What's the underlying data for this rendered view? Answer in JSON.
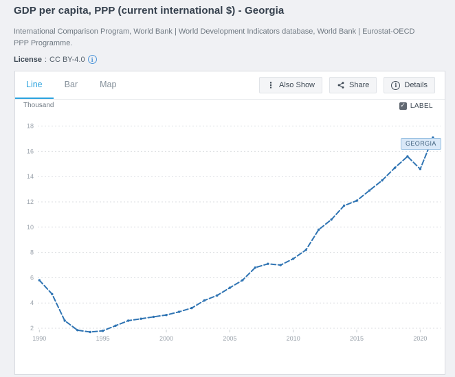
{
  "header": {
    "title": "GDP per capita, PPP (current international $) - Georgia",
    "source": "International Comparison Program, World Bank | World Development Indicators database, World Bank | Eurostat-OECD PPP Programme.",
    "license_label": "License",
    "license_separator": ": ",
    "license_value": "CC BY-4.0"
  },
  "tabs": [
    {
      "label": "Line",
      "active": true
    },
    {
      "label": "Bar",
      "active": false
    },
    {
      "label": "Map",
      "active": false
    }
  ],
  "toolbar": {
    "also_show_label": "Also Show",
    "share_label": "Share",
    "details_label": "Details"
  },
  "chart_controls": {
    "unit_label": "Thousand",
    "label_checkbox_text": "LABEL",
    "label_checked": true
  },
  "series_tag": "GEORGIA",
  "colors": {
    "accent_tab": "#2aa2de",
    "line": "#2f74b3",
    "tag_bg": "#d9e8f8",
    "tag_border": "#98c0e2",
    "page_bg": "#f0f1f4",
    "license_icon": "#4e95d9"
  },
  "chart_data": {
    "type": "line",
    "title": "GDP per capita, PPP (current international $) - Georgia",
    "unit": "Thousand",
    "xlabel": "",
    "ylabel": "Thousand",
    "grid": "horizontal-dashed",
    "xticks": [
      1990,
      1995,
      2000,
      2005,
      2010,
      2015,
      2020
    ],
    "yticks": [
      2,
      4,
      6,
      8,
      10,
      12,
      14,
      16,
      18
    ],
    "xlim": [
      1990,
      2021
    ],
    "ylim": [
      2,
      18
    ],
    "series": [
      {
        "name": "Georgia",
        "x": [
          1990,
          1991,
          1992,
          1993,
          1994,
          1995,
          1996,
          1997,
          1998,
          1999,
          2000,
          2001,
          2002,
          2003,
          2004,
          2005,
          2006,
          2007,
          2008,
          2009,
          2010,
          2011,
          2012,
          2013,
          2014,
          2015,
          2016,
          2017,
          2018,
          2019,
          2020,
          2021
        ],
        "y": [
          5.8,
          4.7,
          2.6,
          1.85,
          1.7,
          1.8,
          2.2,
          2.6,
          2.75,
          2.9,
          3.05,
          3.3,
          3.6,
          4.2,
          4.6,
          5.2,
          5.8,
          6.8,
          7.1,
          7.0,
          7.5,
          8.2,
          9.8,
          10.6,
          11.7,
          12.1,
          12.9,
          13.7,
          14.7,
          15.6,
          14.6,
          17.1
        ]
      }
    ]
  }
}
